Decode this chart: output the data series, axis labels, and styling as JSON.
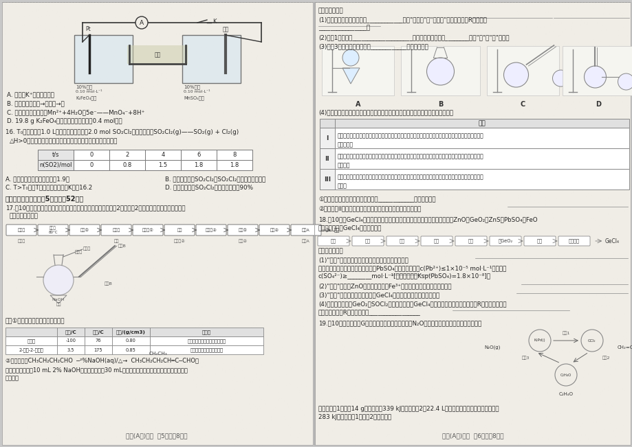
{
  "bg_color": "#c8c8c8",
  "page_color": "#f0ede6",
  "text_color": "#222222",
  "footer_left": "化学(A卷)试题  第5页（共8页）",
  "footer_right": "化学(A卷)试题  第6页（共8页）",
  "table16_headers": [
    "t/s",
    "0",
    "2",
    "4",
    "6",
    "8"
  ],
  "table16_row": [
    "n(SO2)/mol",
    "0",
    "0.8",
    "1.5",
    "1.8",
    "1.8"
  ],
  "table17_headers": [
    "",
    "沸点/C",
    "熔点/C",
    "密度/(g/cm3)",
    "溶解性"
  ],
  "table17_rows": [
    [
      "正丁醛",
      "-100",
      "76",
      "0.80",
      "微溶于水，易溶于多数有机溶剂"
    ],
    [
      "2-乙基-2-己烯醛",
      "3.5",
      "175",
      "0.85",
      "不溶于水，易溶于有机溶剂"
    ]
  ]
}
